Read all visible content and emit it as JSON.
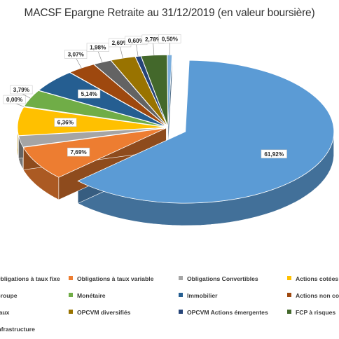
{
  "chart_data": {
    "type": "pie",
    "title": "MACSF Epargne Retraite au 31/12/2019 (en valeur boursière)",
    "series": [
      {
        "name": "Obligations à taux fixe",
        "value": 61.92,
        "label": "61,92%",
        "color": "#5b9bd5"
      },
      {
        "name": "Obligations à taux variable",
        "value": 7.69,
        "label": "7,69%",
        "color": "#ed7d31"
      },
      {
        "name": "Obligations Convertibles",
        "value": 2.5,
        "label": "",
        "color": "#a5a5a5"
      },
      {
        "name": "Actions cotées",
        "value": 6.36,
        "label": "6,36%",
        "color": "#ffc000"
      },
      {
        "name": "Groupe",
        "value": 0.0,
        "label": "0,00%",
        "color": "#4472c4"
      },
      {
        "name": "Monétaire",
        "value": 3.79,
        "label": "3,79%",
        "color": "#70ad47"
      },
      {
        "name": "Immobilier",
        "value": 5.14,
        "label": "5,14%",
        "color": "#255e91"
      },
      {
        "name": "Actions non cotées",
        "value": 3.07,
        "label": "3,07%",
        "color": "#9e480e"
      },
      {
        "name": "Taux",
        "value": 1.98,
        "label": "1,98%",
        "color": "#636363"
      },
      {
        "name": "OPCVM diversifiés",
        "value": 2.69,
        "label": "2,69%",
        "color": "#997300"
      },
      {
        "name": "OPCVM Actions émergentes",
        "value": 0.6,
        "label": "0,60%",
        "color": "#264478"
      },
      {
        "name": "FCP à risques",
        "value": 2.78,
        "label": "2,78%",
        "color": "#43682b"
      },
      {
        "name": "Infrastructure",
        "value": 0.5,
        "label": "0,50%",
        "color": "#7cafdd"
      }
    ],
    "legend_position": "bottom"
  },
  "legend_texts": [
    "Obligations à taux fixe",
    "Obligations à taux variable",
    "Obligations Convertibles",
    "Actions cotées",
    "Groupe",
    "Monétaire",
    "Immobilier",
    "Actions non cotées",
    "Taux",
    "OPCVM diversifiés",
    "OPCVM Actions émergentes",
    "FCP à risques",
    "Infrastructure"
  ]
}
